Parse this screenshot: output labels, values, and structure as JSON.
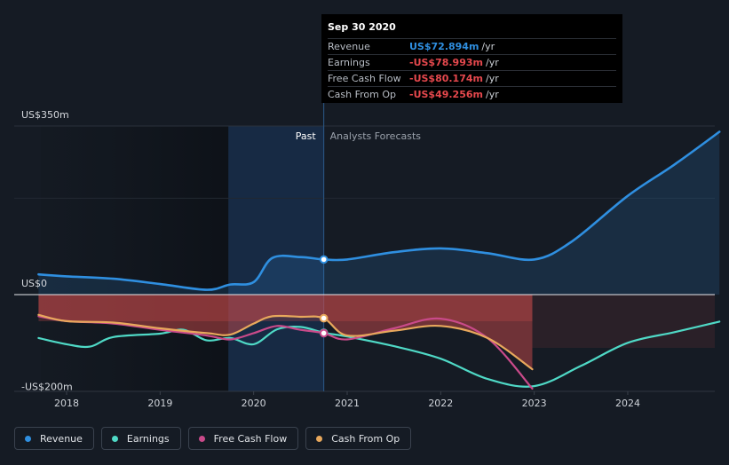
{
  "chart_data": {
    "type": "line",
    "y_axis_labels": [
      "US$350m",
      "US$0",
      "-US$200m"
    ],
    "ylim": [
      -200,
      350
    ],
    "x_ticks": [
      "2018",
      "2019",
      "2020",
      "2021",
      "2022",
      "2023",
      "2024"
    ],
    "past_label": "Past",
    "forecast_label": "Analysts Forecasts",
    "series": [
      {
        "name": "Revenue",
        "color": "#2f8fe0",
        "points": [
          [
            2017.7,
            42
          ],
          [
            2018.0,
            38
          ],
          [
            2018.5,
            33
          ],
          [
            2019.0,
            22
          ],
          [
            2019.5,
            10
          ],
          [
            2019.75,
            21
          ],
          [
            2020.0,
            26
          ],
          [
            2020.2,
            76
          ],
          [
            2020.5,
            78
          ],
          [
            2020.75,
            73
          ],
          [
            2021.0,
            73
          ],
          [
            2021.5,
            88
          ],
          [
            2022.0,
            96
          ],
          [
            2022.5,
            86
          ],
          [
            2023.0,
            73
          ],
          [
            2023.4,
            110
          ],
          [
            2024.0,
            205
          ],
          [
            2024.5,
            270
          ],
          [
            2024.98,
            338
          ]
        ]
      },
      {
        "name": "Earnings",
        "color": "#4fd9c6",
        "points": [
          [
            2017.7,
            -90
          ],
          [
            2018.0,
            -103
          ],
          [
            2018.25,
            -108
          ],
          [
            2018.5,
            -88
          ],
          [
            2019.0,
            -81
          ],
          [
            2019.25,
            -73
          ],
          [
            2019.5,
            -95
          ],
          [
            2019.75,
            -90
          ],
          [
            2020.0,
            -103
          ],
          [
            2020.25,
            -72
          ],
          [
            2020.5,
            -67
          ],
          [
            2020.75,
            -79
          ],
          [
            2021.0,
            -87
          ],
          [
            2021.5,
            -107
          ],
          [
            2022.0,
            -133
          ],
          [
            2022.5,
            -175
          ],
          [
            2023.0,
            -190
          ],
          [
            2023.5,
            -148
          ],
          [
            2024.0,
            -100
          ],
          [
            2024.5,
            -78
          ],
          [
            2024.98,
            -56
          ]
        ]
      },
      {
        "name": "Free Cash Flow",
        "color": "#c94a8a",
        "points": [
          [
            2017.7,
            -45
          ],
          [
            2018.0,
            -55
          ],
          [
            2018.5,
            -60
          ],
          [
            2019.0,
            -73
          ],
          [
            2019.5,
            -85
          ],
          [
            2019.75,
            -93
          ],
          [
            2020.0,
            -80
          ],
          [
            2020.25,
            -65
          ],
          [
            2020.5,
            -73
          ],
          [
            2020.75,
            -80
          ],
          [
            2021.0,
            -93
          ],
          [
            2021.5,
            -70
          ],
          [
            2022.0,
            -50
          ],
          [
            2022.5,
            -90
          ],
          [
            2022.98,
            -195
          ]
        ]
      },
      {
        "name": "Cash From Op",
        "color": "#e8a85c",
        "points": [
          [
            2017.7,
            -42
          ],
          [
            2018.0,
            -55
          ],
          [
            2018.5,
            -58
          ],
          [
            2019.0,
            -70
          ],
          [
            2019.5,
            -80
          ],
          [
            2019.75,
            -83
          ],
          [
            2020.0,
            -60
          ],
          [
            2020.2,
            -45
          ],
          [
            2020.5,
            -46
          ],
          [
            2020.75,
            -49
          ],
          [
            2021.0,
            -85
          ],
          [
            2021.5,
            -75
          ],
          [
            2022.0,
            -65
          ],
          [
            2022.5,
            -90
          ],
          [
            2022.98,
            -155
          ]
        ]
      }
    ],
    "tooltip": {
      "date": "Sep 30 2020",
      "rows": [
        {
          "label": "Revenue",
          "value": "US$72.894m",
          "unit": "/yr",
          "color": "#2f8fe0"
        },
        {
          "label": "Earnings",
          "value": "-US$78.993m",
          "unit": "/yr",
          "color": "#e5484d"
        },
        {
          "label": "Free Cash Flow",
          "value": "-US$80.174m",
          "unit": "/yr",
          "color": "#e5484d"
        },
        {
          "label": "Cash From Op",
          "value": "-US$49.256m",
          "unit": "/yr",
          "color": "#e5484d"
        }
      ]
    },
    "legend": [
      {
        "name": "Revenue",
        "color": "#2f8fe0"
      },
      {
        "name": "Earnings",
        "color": "#4fd9c6"
      },
      {
        "name": "Free Cash Flow",
        "color": "#c94a8a"
      },
      {
        "name": "Cash From Op",
        "color": "#e8a85c"
      }
    ]
  }
}
